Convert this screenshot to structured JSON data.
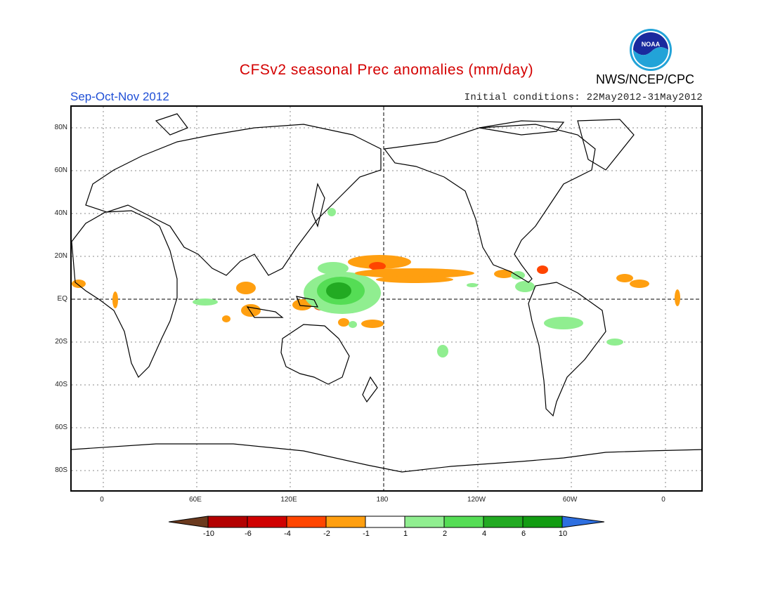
{
  "title": "CFSv2 seasonal Prec anomalies (mm/day)",
  "period": "Sep-Oct-Nov 2012",
  "initial_conditions": "Initial conditions: 22May2012-31May2012",
  "agency": "NWS/NCEP/CPC",
  "logo_text": "NOAA",
  "lat_labels": [
    "80N",
    "60N",
    "40N",
    "20N",
    "EQ",
    "20S",
    "40S",
    "60S",
    "80S"
  ],
  "lon_labels": [
    "0",
    "60E",
    "120E",
    "180",
    "120W",
    "60W",
    "0"
  ],
  "legend": {
    "ticks": [
      "-10",
      "-6",
      "-4",
      "-2",
      "-1",
      "1",
      "2",
      "4",
      "6",
      "10"
    ],
    "colors": [
      "#6b3a1e",
      "#b30000",
      "#d00000",
      "#ff4500",
      "#ff9f10",
      "#ffffff",
      "#90ee90",
      "#55dd55",
      "#22aa22",
      "#129c12",
      "#2e6fe0"
    ]
  },
  "colors": {
    "title": "#d40000",
    "period": "#1f4fd6",
    "dry_moderate": "#ff9f10",
    "dry_strong": "#ff4500",
    "dry_very_strong": "#d00000",
    "wet_light": "#90ee90",
    "wet_moderate": "#55dd55",
    "wet_strong": "#22aa22"
  }
}
